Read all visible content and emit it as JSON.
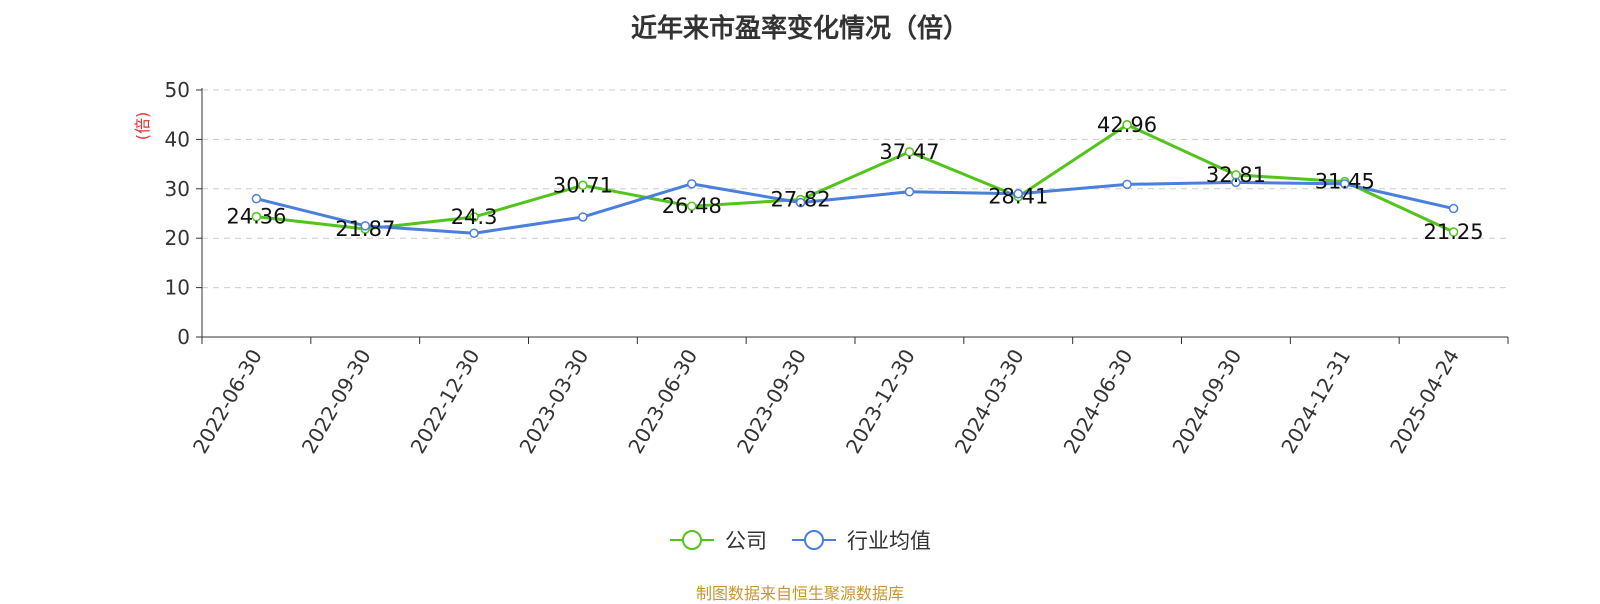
{
  "chart_data": {
    "type": "line",
    "title": "近年来市盈率变化情况（倍）",
    "ylabel": "(倍)",
    "xlabel": "",
    "categories": [
      "2022-06-30",
      "2022-09-30",
      "2022-12-30",
      "2023-03-30",
      "2023-06-30",
      "2023-09-30",
      "2023-12-30",
      "2024-03-30",
      "2024-06-30",
      "2024-09-30",
      "2024-12-31",
      "2025-04-24"
    ],
    "ylim": [
      0,
      50
    ],
    "yticks": [
      0,
      10,
      20,
      30,
      40,
      50
    ],
    "grid": true,
    "legend_position": "bottom",
    "series": [
      {
        "name": "公司",
        "color": "#52c41a",
        "values": [
          24.36,
          21.87,
          24.3,
          30.71,
          26.48,
          27.82,
          37.47,
          28.41,
          42.96,
          32.81,
          31.45,
          21.25
        ],
        "labels": [
          "24.36",
          "21.87",
          "24.3",
          "30.71",
          "26.48",
          "27.82",
          "37.47",
          "28.41",
          "42.96",
          "32.81",
          "31.45",
          "21.25"
        ]
      },
      {
        "name": "行业均值",
        "color": "#4a7fdc",
        "values": [
          28.0,
          22.5,
          21.0,
          24.3,
          31.0,
          27.2,
          29.4,
          29.0,
          30.9,
          31.3,
          31.0,
          26.0
        ]
      }
    ]
  },
  "source_text": "制图数据来自恒生聚源数据库"
}
